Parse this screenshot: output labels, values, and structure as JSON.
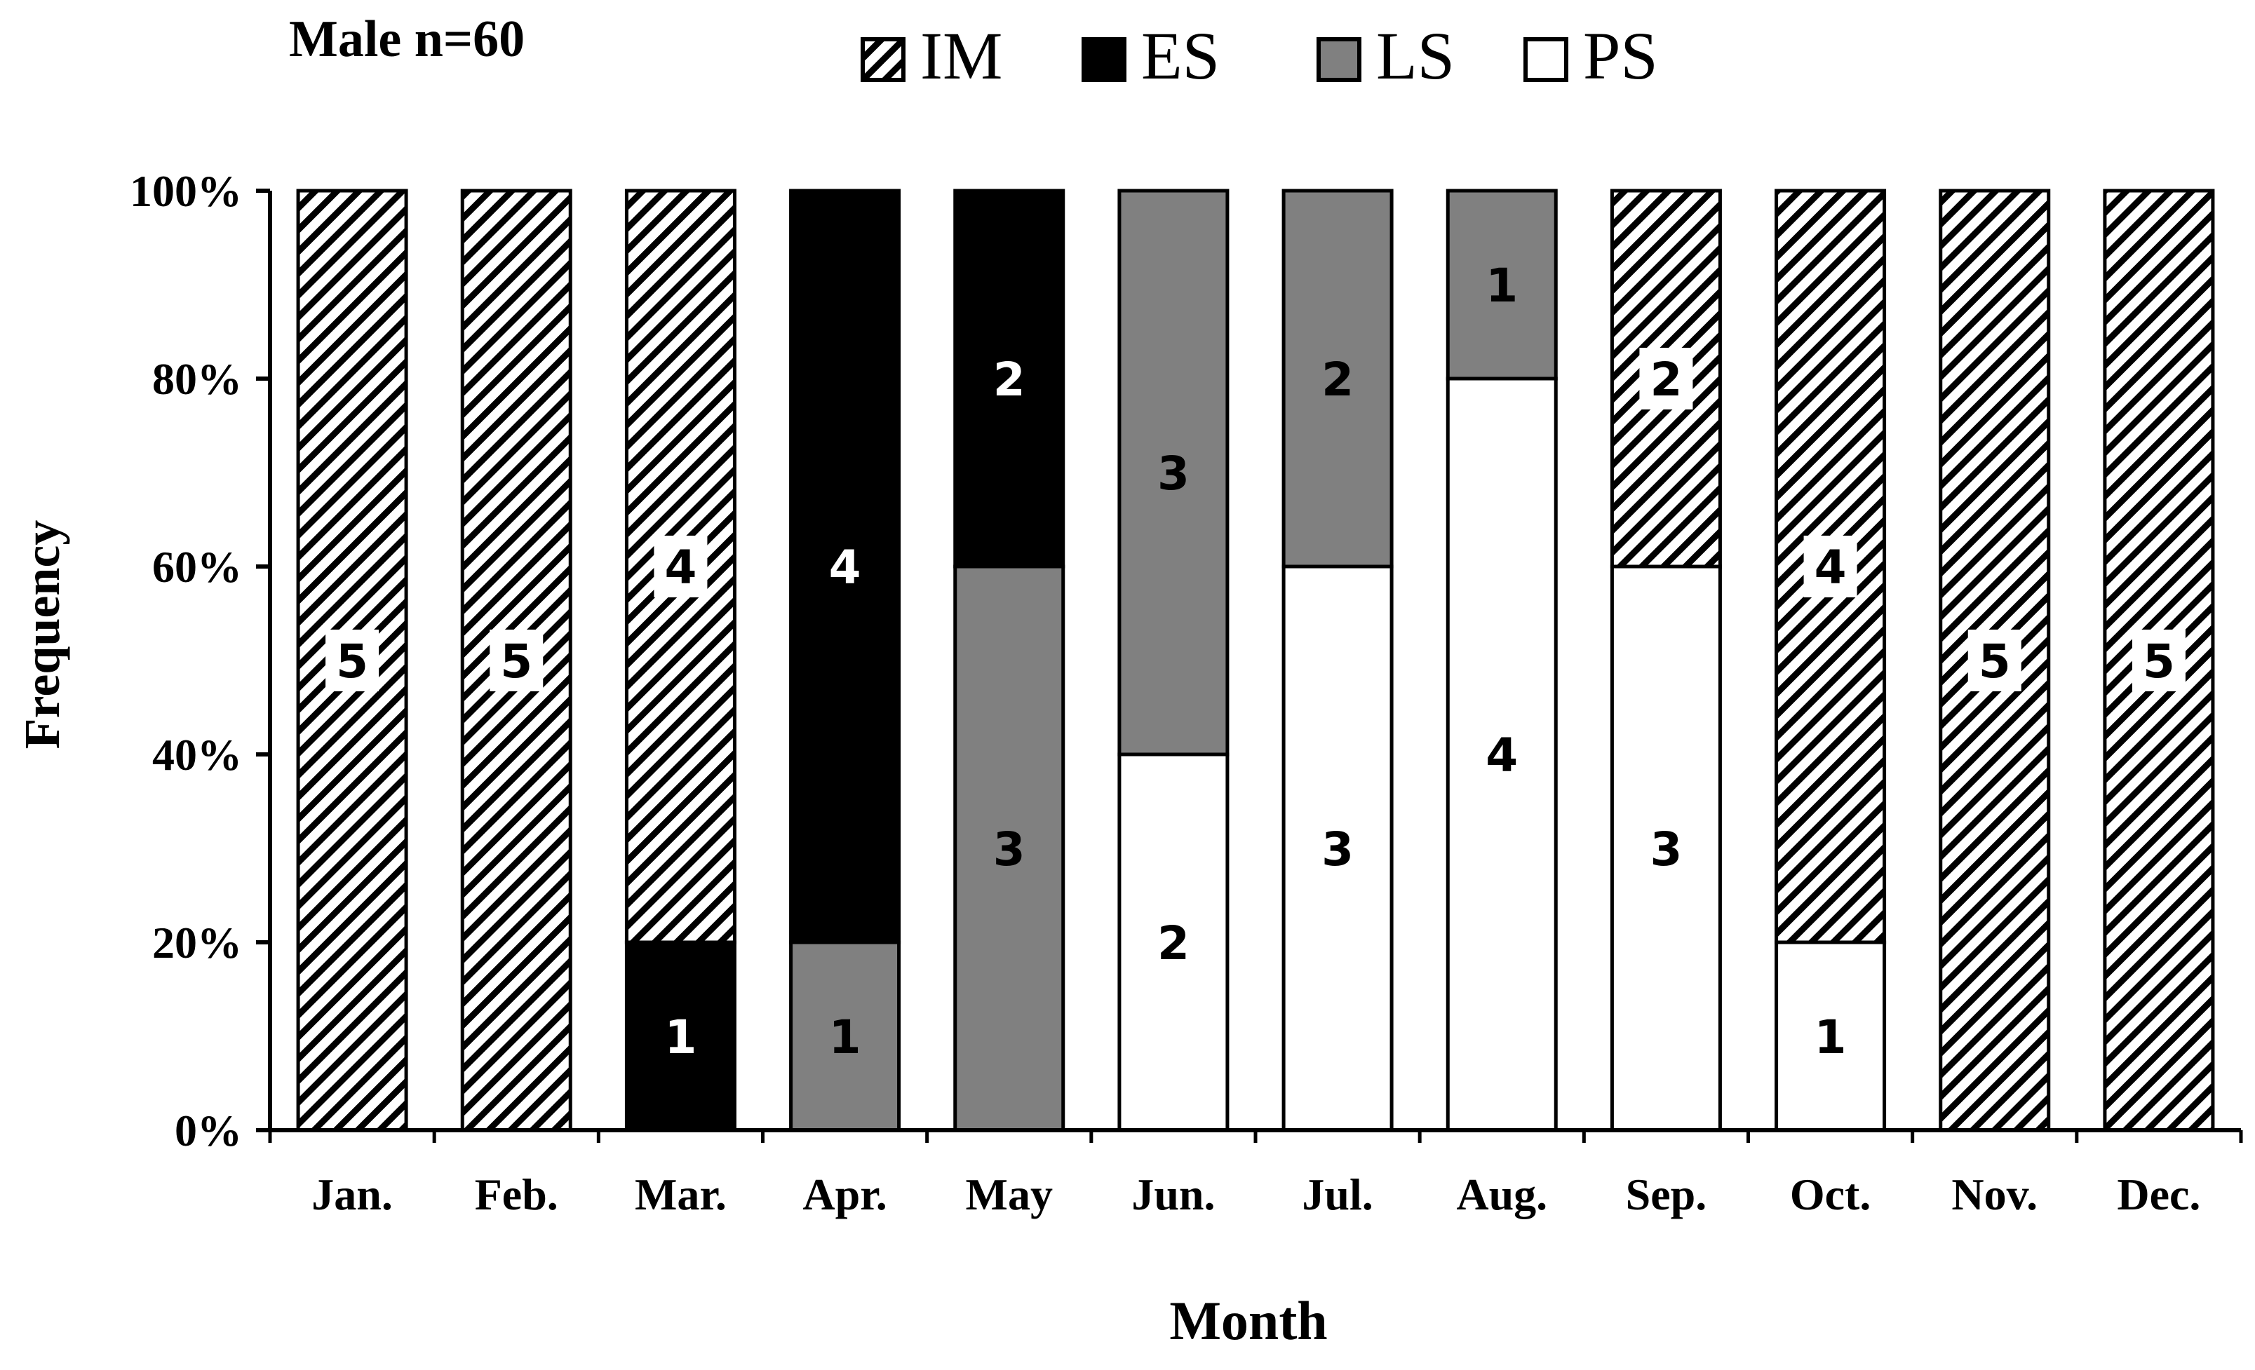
{
  "chart_data": {
    "type": "bar",
    "stacked": true,
    "normalized": true,
    "title": "Male n=60",
    "xlabel": "Month",
    "ylabel": "Frequency",
    "categories": [
      "Jan.",
      "Feb.",
      "Mar.",
      "Apr.",
      "May",
      "Jun.",
      "Jul.",
      "Aug.",
      "Sep.",
      "Oct.",
      "Nov.",
      "Dec."
    ],
    "series": [
      {
        "name": "PS",
        "values": [
          0,
          0,
          0,
          0,
          0,
          2,
          3,
          4,
          3,
          1,
          0,
          0
        ]
      },
      {
        "name": "LS",
        "values": [
          0,
          0,
          0,
          1,
          3,
          3,
          2,
          1,
          0,
          0,
          0,
          0
        ]
      },
      {
        "name": "ES",
        "values": [
          0,
          0,
          1,
          4,
          2,
          0,
          0,
          0,
          0,
          0,
          0,
          0
        ]
      },
      {
        "name": "IM",
        "values": [
          5,
          5,
          4,
          0,
          0,
          0,
          0,
          0,
          2,
          4,
          5,
          5
        ]
      }
    ],
    "legend_order": [
      "IM",
      "ES",
      "LS",
      "PS"
    ],
    "legend_position": "top",
    "ylim": [
      0,
      100
    ],
    "yticks": [
      "0%",
      "20%",
      "40%",
      "60%",
      "80%",
      "100%"
    ],
    "grid": false,
    "colors": {
      "IM": "hatched",
      "ES": "#000000",
      "LS": "#808080",
      "PS": "#ffffff"
    }
  }
}
